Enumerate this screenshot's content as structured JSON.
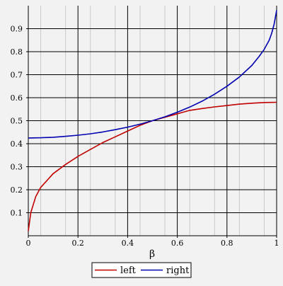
{
  "chart_data": {
    "type": "line",
    "xlabel": "β",
    "ylabel": "",
    "xlim": [
      0,
      1
    ],
    "ylim": [
      0,
      1
    ],
    "x_ticks": [
      0,
      0.2,
      0.4,
      0.6,
      0.8,
      1
    ],
    "x_tick_labels": [
      "0",
      "0.2",
      "0.4",
      "0.6",
      "0.8",
      "1"
    ],
    "y_ticks": [
      0.1,
      0.2,
      0.3,
      0.4,
      0.5,
      0.6,
      0.7,
      0.8,
      0.9
    ],
    "y_tick_labels": [
      "0.1",
      "0.2",
      "0.3",
      "0.4",
      "0.5",
      "0.6",
      "0.7",
      "0.8",
      "0.9"
    ],
    "grid": true,
    "legend_position": "bottom-center",
    "background": "#f2f2f2",
    "grid_major_color": "#000000",
    "grid_minor_color": "#c8c8c8",
    "series": [
      {
        "name": "left",
        "color": "#c00000",
        "x": [
          0,
          0.01,
          0.03,
          0.05,
          0.1,
          0.15,
          0.2,
          0.25,
          0.3,
          0.35,
          0.4,
          0.45,
          0.5,
          0.55,
          0.6,
          0.65,
          0.7,
          0.75,
          0.8,
          0.85,
          0.9,
          0.95,
          1
        ],
        "y": [
          0.02,
          0.1,
          0.17,
          0.21,
          0.27,
          0.31,
          0.345,
          0.375,
          0.405,
          0.43,
          0.455,
          0.48,
          0.5,
          0.515,
          0.53,
          0.545,
          0.553,
          0.56,
          0.566,
          0.572,
          0.576,
          0.579,
          0.58
        ]
      },
      {
        "name": "right",
        "color": "#0000b0",
        "x": [
          0,
          0.05,
          0.1,
          0.15,
          0.2,
          0.25,
          0.3,
          0.35,
          0.4,
          0.45,
          0.5,
          0.55,
          0.6,
          0.65,
          0.7,
          0.75,
          0.8,
          0.85,
          0.9,
          0.93,
          0.95,
          0.97,
          0.98,
          0.99,
          1
        ],
        "y": [
          0.425,
          0.426,
          0.428,
          0.432,
          0.437,
          0.443,
          0.451,
          0.461,
          0.472,
          0.485,
          0.5,
          0.517,
          0.537,
          0.559,
          0.585,
          0.615,
          0.65,
          0.69,
          0.74,
          0.78,
          0.81,
          0.85,
          0.88,
          0.92,
          0.98
        ]
      }
    ]
  }
}
